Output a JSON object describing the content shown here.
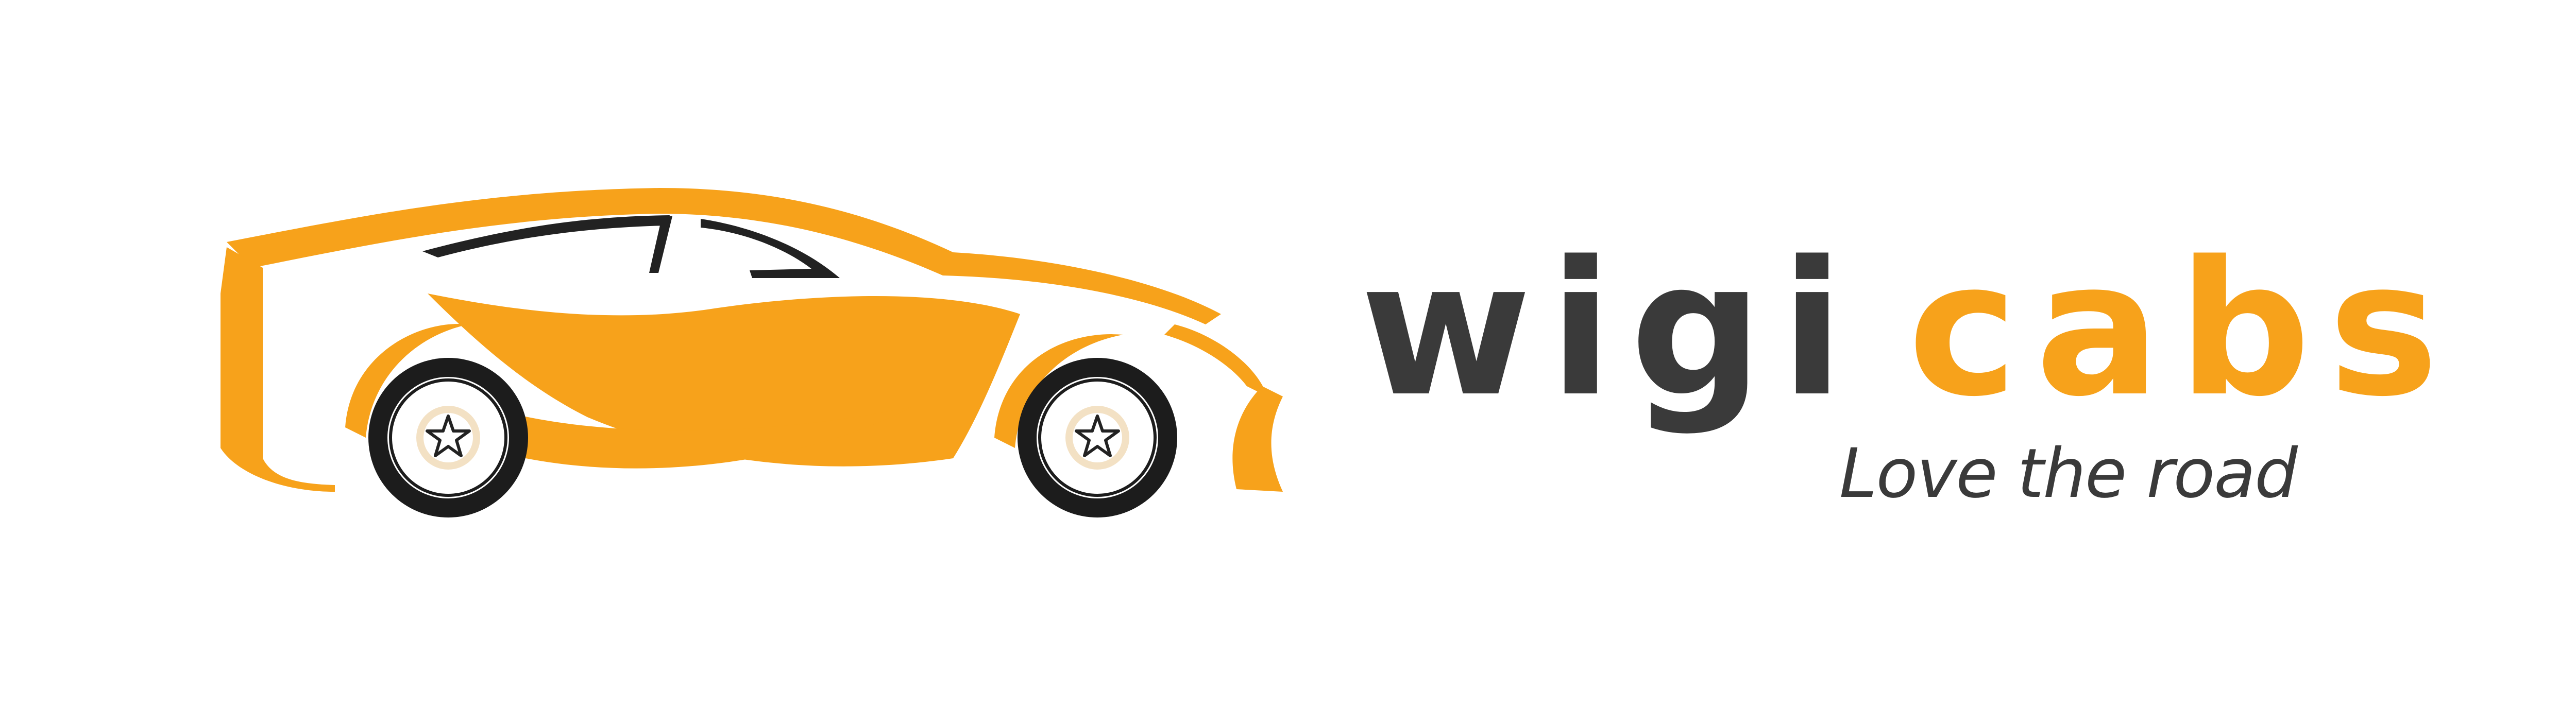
{
  "brand": {
    "name_part1": "wigi",
    "name_part2": "cabs",
    "tagline": "Love the road"
  },
  "logo": {
    "icon": "car-icon",
    "wheel_icon": "star-icon"
  },
  "colors": {
    "accent": "#f7a21b",
    "dark": "#3a3a3a",
    "background": "#ffffff"
  }
}
